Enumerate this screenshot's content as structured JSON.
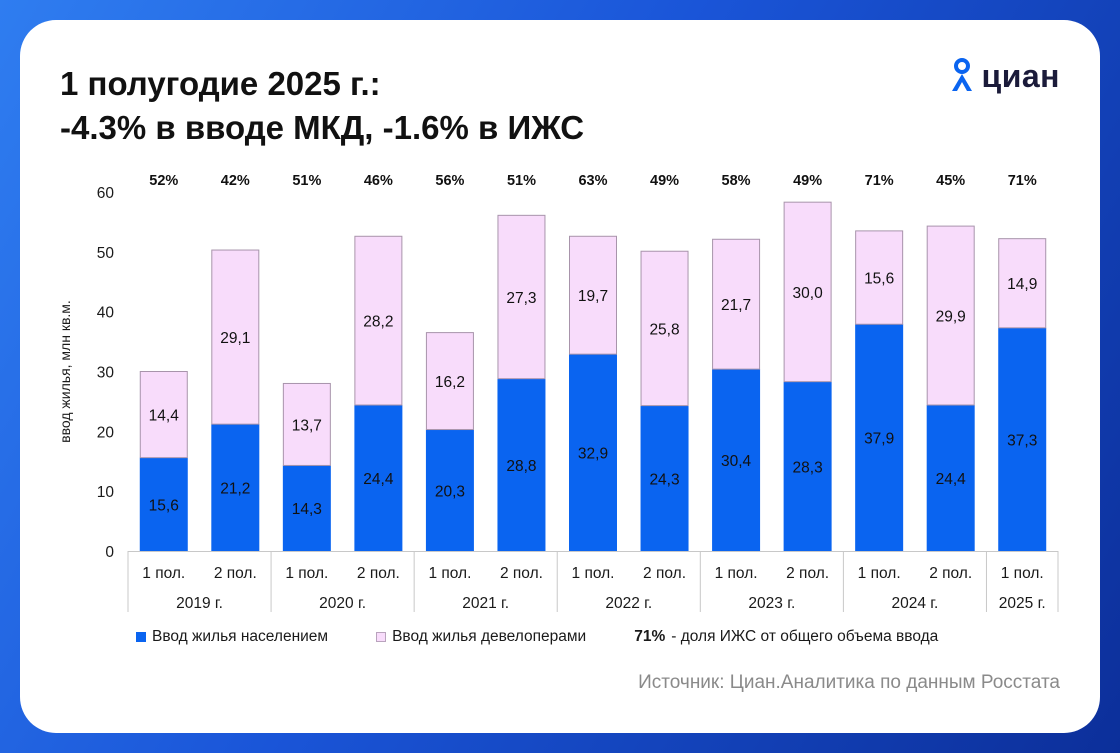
{
  "title": {
    "line1": "1 полугодие 2025 г.:",
    "line2": "-4.3% в вводе МКД, -1.6% в ИЖС"
  },
  "logo": {
    "text": "циан",
    "icon": "location-pin-person-icon"
  },
  "source": "Источник: Циан.Аналитика по данным Росстата",
  "legend": {
    "population": "Ввод жилья населением",
    "developers": "Ввод жилья девелоперами",
    "note_value": "71%",
    "note_text": " - доля ИЖС от общего объема ввода"
  },
  "colors": {
    "population": "#0a64f0",
    "developers": "#f8dcfb",
    "developers_border": "#a894ab",
    "background_accent": "#1a55d8"
  },
  "chart_data": {
    "type": "bar",
    "stacked": true,
    "categories": [
      "1 пол.",
      "2 пол.",
      "1 пол.",
      "2 пол.",
      "1 пол.",
      "2 пол.",
      "1 пол.",
      "2 пол.",
      "1 пол.",
      "2 пол.",
      "1 пол.",
      "2 пол.",
      "1 пол."
    ],
    "groups": [
      {
        "label": "2019 г.",
        "span": 2
      },
      {
        "label": "2020 г.",
        "span": 2
      },
      {
        "label": "2021 г.",
        "span": 2
      },
      {
        "label": "2022 г.",
        "span": 2
      },
      {
        "label": "2023 г.",
        "span": 2
      },
      {
        "label": "2024 г.",
        "span": 2
      },
      {
        "label": "2025 г.",
        "span": 1
      }
    ],
    "series": [
      {
        "name": "Ввод жилья населением",
        "values": [
          15.6,
          21.2,
          14.3,
          24.4,
          20.3,
          28.8,
          32.9,
          24.3,
          30.4,
          28.3,
          37.9,
          24.4,
          37.3
        ],
        "labels": [
          "15,6",
          "21,2",
          "14,3",
          "24,4",
          "20,3",
          "28,8",
          "32,9",
          "24,3",
          "30,4",
          "28,3",
          "37,9",
          "24,4",
          "37,3"
        ]
      },
      {
        "name": "Ввод жилья девелоперами",
        "values": [
          14.4,
          29.1,
          13.7,
          28.2,
          16.2,
          27.3,
          19.7,
          25.8,
          21.7,
          30.0,
          15.6,
          29.9,
          14.9
        ],
        "labels": [
          "14,4",
          "29,1",
          "13,7",
          "28,2",
          "16,2",
          "27,3",
          "19,7",
          "25,8",
          "21,7",
          "30,0",
          "15,6",
          "29,9",
          "14,9"
        ]
      }
    ],
    "top_labels": [
      "52%",
      "42%",
      "51%",
      "46%",
      "56%",
      "51%",
      "63%",
      "49%",
      "58%",
      "49%",
      "71%",
      "45%",
      "71%"
    ],
    "ylabel": "ввод жилья, млн кв.м.",
    "ylim": [
      0,
      60
    ],
    "yticks": [
      0,
      10,
      20,
      30,
      40,
      50,
      60
    ],
    "grid": false,
    "legend_position": "bottom"
  }
}
